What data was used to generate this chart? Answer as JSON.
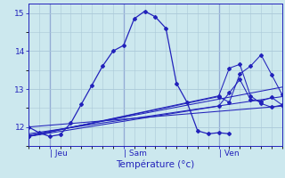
{
  "title": "",
  "xlabel": "Température (°c)",
  "ylabel": "",
  "bg_color": "#cce8ee",
  "grid_color": "#aac8d8",
  "line_color": "#2222bb",
  "xlim": [
    0,
    48
  ],
  "ylim": [
    11.5,
    15.25
  ],
  "yticks": [
    12,
    13,
    14,
    15
  ],
  "xtick_labels": [
    [
      "| Jeu",
      4
    ],
    [
      "| Sam",
      18
    ],
    [
      "| Ven",
      36
    ]
  ],
  "vlines": [
    4,
    18,
    36
  ],
  "series": [
    [
      0,
      12.0,
      2,
      11.85,
      4,
      11.75,
      6,
      11.8,
      8,
      12.1,
      10,
      12.6,
      12,
      13.1,
      14,
      13.6,
      16,
      14.0,
      18,
      14.15,
      20,
      14.85,
      22,
      15.05,
      24,
      14.9,
      26,
      14.6,
      28,
      13.15,
      30,
      12.65,
      32,
      11.9,
      34,
      11.82,
      36,
      11.85,
      38,
      11.82
    ],
    [
      0,
      12.0,
      48,
      12.55
    ],
    [
      0,
      11.82,
      48,
      12.8
    ],
    [
      0,
      11.78,
      48,
      13.05
    ],
    [
      0,
      11.75,
      36,
      12.8,
      38,
      12.65,
      40,
      13.4,
      42,
      13.6,
      44,
      13.9,
      46,
      13.38,
      48,
      12.85
    ],
    [
      0,
      11.75,
      36,
      12.55,
      38,
      12.9,
      40,
      13.25,
      42,
      12.72,
      44,
      12.68,
      46,
      12.78,
      48,
      12.58
    ],
    [
      0,
      11.75,
      36,
      12.82,
      38,
      13.55,
      40,
      13.65,
      42,
      12.82,
      44,
      12.62,
      46,
      12.52,
      48,
      12.58
    ]
  ]
}
